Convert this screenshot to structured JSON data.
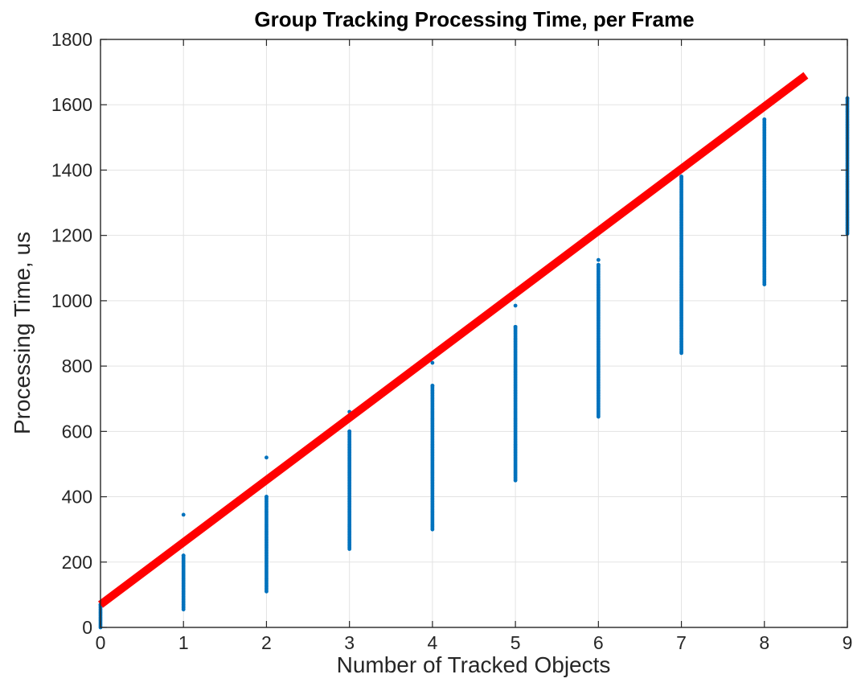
{
  "chart_data": {
    "type": "scatter",
    "title": "Group Tracking Processing Time, per Frame",
    "xlabel": "Number of Tracked Objects",
    "ylabel": "Processing Time, us",
    "xlim": [
      0,
      9
    ],
    "ylim": [
      0,
      1800
    ],
    "xticks": [
      0,
      1,
      2,
      3,
      4,
      5,
      6,
      7,
      8,
      9
    ],
    "yticks": [
      0,
      200,
      400,
      600,
      800,
      1000,
      1200,
      1400,
      1600,
      1800
    ],
    "grid": true,
    "colors": {
      "points": "#0072BD",
      "fit_line": "#FF0000"
    },
    "series": [
      {
        "kind": "scatter",
        "points": [
          {
            "x": 0,
            "min": 0,
            "max": 70
          },
          {
            "x": 1,
            "min": 55,
            "max": 220,
            "outliers": [
              345
            ]
          },
          {
            "x": 2,
            "min": 110,
            "max": 400,
            "outliers": [
              520
            ]
          },
          {
            "x": 3,
            "min": 240,
            "max": 600,
            "outliers": [
              660
            ]
          },
          {
            "x": 4,
            "min": 300,
            "max": 740,
            "outliers": [
              810
            ]
          },
          {
            "x": 5,
            "min": 450,
            "max": 920,
            "outliers": [
              985
            ]
          },
          {
            "x": 6,
            "min": 645,
            "max": 1110,
            "outliers": [
              1125
            ]
          },
          {
            "x": 7,
            "min": 840,
            "max": 1380
          },
          {
            "x": 8,
            "min": 1050,
            "max": 1555
          },
          {
            "x": 9,
            "min": 1205,
            "max": 1620
          }
        ]
      },
      {
        "kind": "line",
        "x": [
          0,
          8.5
        ],
        "y": [
          70,
          1690
        ]
      }
    ]
  }
}
